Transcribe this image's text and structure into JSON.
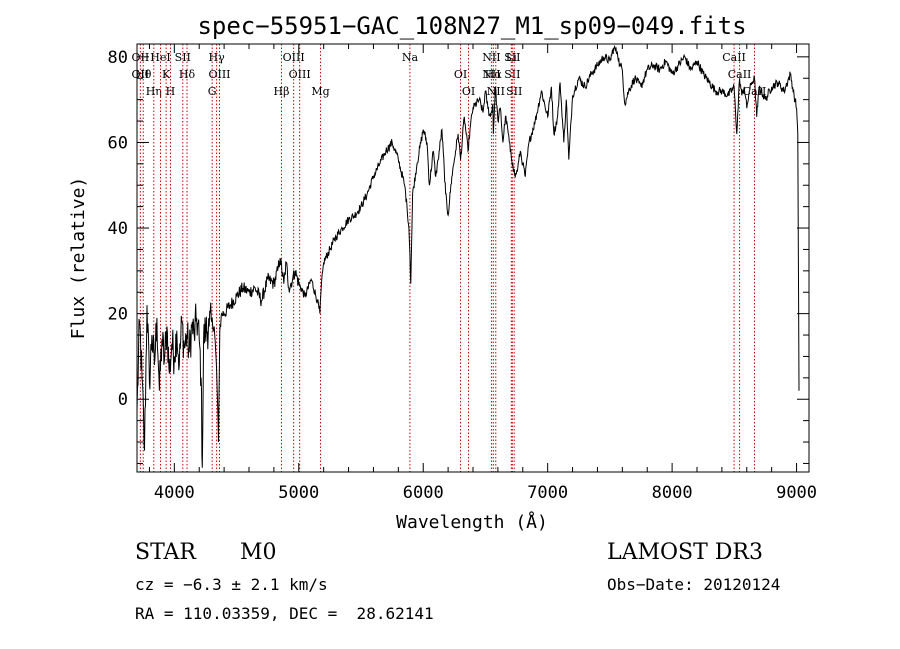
{
  "chart_data": {
    "type": "line",
    "title": "spec−55951−GAC_108N27_M1_sp09−049.fits",
    "xlabel": "Wavelength (Å)",
    "ylabel": "Flux (relative)",
    "xlim": [
      3700,
      9100
    ],
    "ylim": [
      -17,
      83
    ],
    "xticks": [
      4000,
      5000,
      6000,
      7000,
      8000,
      9000
    ],
    "xtick_labels": [
      "4000",
      "5000",
      "6000",
      "7000",
      "8000",
      "9000"
    ],
    "yticks": [
      0,
      20,
      40,
      60,
      80
    ],
    "ytick_labels": [
      "0",
      "20",
      "40",
      "60",
      "80"
    ],
    "series": [
      {
        "name": "flux",
        "x": [
          3700,
          3720,
          3740,
          3760,
          3780,
          3800,
          3820,
          3840,
          3860,
          3880,
          3900,
          3920,
          3940,
          3960,
          3980,
          4000,
          4020,
          4040,
          4060,
          4080,
          4100,
          4120,
          4140,
          4160,
          4180,
          4200,
          4215,
          4225,
          4235,
          4250,
          4280,
          4300,
          4320,
          4340,
          4355,
          4365,
          4380,
          4400,
          4450,
          4500,
          4550,
          4600,
          4650,
          4700,
          4750,
          4800,
          4830,
          4850,
          4880,
          4900,
          4920,
          4950,
          4970,
          5000,
          5050,
          5100,
          5150,
          5170,
          5180,
          5200,
          5250,
          5300,
          5350,
          5400,
          5450,
          5500,
          5550,
          5600,
          5650,
          5700,
          5750,
          5800,
          5850,
          5870,
          5885,
          5893,
          5900,
          5915,
          5950,
          6000,
          6030,
          6050,
          6080,
          6100,
          6120,
          6150,
          6180,
          6200,
          6230,
          6260,
          6280,
          6300,
          6330,
          6360,
          6380,
          6400,
          6450,
          6480,
          6500,
          6520,
          6540,
          6560,
          6563,
          6580,
          6600,
          6620,
          6640,
          6660,
          6680,
          6700,
          6720,
          6740,
          6760,
          6780,
          6800,
          6820,
          6850,
          6900,
          6950,
          7000,
          7030,
          7050,
          7080,
          7100,
          7130,
          7150,
          7170,
          7200,
          7250,
          7300,
          7350,
          7400,
          7450,
          7500,
          7530,
          7560,
          7580,
          7600,
          7620,
          7650,
          7700,
          7750,
          7800,
          7850,
          7900,
          7950,
          8000,
          8050,
          8100,
          8150,
          8200,
          8250,
          8300,
          8350,
          8400,
          8450,
          8498,
          8520,
          8542,
          8560,
          8580,
          8600,
          8620,
          8640,
          8662,
          8680,
          8700,
          8750,
          8800,
          8850,
          8900,
          8950,
          8980,
          9000,
          9010,
          9020
        ],
        "y": [
          -3,
          18,
          5,
          -12,
          22,
          4,
          15,
          8,
          19,
          2,
          14,
          9,
          17,
          6,
          13,
          10,
          16,
          8,
          18,
          12,
          15,
          11,
          17,
          15,
          19,
          14,
          5,
          -16,
          14,
          16,
          17,
          18,
          17,
          7,
          -10,
          16,
          20,
          20,
          22,
          24,
          26,
          25,
          26,
          23,
          28,
          27,
          30,
          33,
          27,
          32,
          26,
          28,
          30,
          27,
          24,
          28,
          23,
          20,
          26,
          32,
          35,
          38,
          40,
          42,
          43,
          45,
          48,
          52,
          55,
          58,
          60,
          56,
          50,
          45,
          40,
          34,
          27,
          48,
          55,
          63,
          60,
          50,
          58,
          52,
          56,
          63,
          48,
          43,
          52,
          58,
          62,
          56,
          66,
          58,
          64,
          68,
          70,
          67,
          72,
          68,
          66,
          69,
          62,
          73,
          65,
          68,
          60,
          66,
          63,
          58,
          55,
          52,
          54,
          58,
          55,
          52,
          60,
          65,
          72,
          66,
          73,
          62,
          66,
          74,
          60,
          70,
          56,
          71,
          75,
          73,
          76,
          78,
          80,
          79,
          82,
          81,
          78,
          77,
          69,
          72,
          75,
          73,
          77,
          78,
          77,
          79,
          76,
          78,
          80,
          77,
          79,
          76,
          74,
          72,
          72,
          71,
          73,
          62,
          75,
          71,
          73,
          68,
          72,
          74,
          75,
          66,
          73,
          70,
          73,
          74,
          72,
          76,
          71,
          68,
          62,
          2
        ]
      }
    ],
    "line_markers": [
      {
        "wl": 3727,
        "labels": [
          "OII",
          "OII"
        ]
      },
      {
        "wl": 3750,
        "labels": [
          "Hθ"
        ]
      },
      {
        "wl": 3835,
        "labels": [
          "Hη"
        ]
      },
      {
        "wl": 3889,
        "labels": [
          "HeI"
        ]
      },
      {
        "wl": 3934,
        "labels": [
          "K"
        ]
      },
      {
        "wl": 3969,
        "labels": [
          "H"
        ]
      },
      {
        "wl": 4068,
        "labels": [
          "SII"
        ]
      },
      {
        "wl": 4102,
        "labels": [
          "Hδ"
        ]
      },
      {
        "wl": 4304,
        "labels": [
          "G"
        ]
      },
      {
        "wl": 4340,
        "labels": [
          "Hγ"
        ]
      },
      {
        "wl": 4363,
        "labels": [
          "OIII"
        ]
      },
      {
        "wl": 4861,
        "labels": [
          "Hβ"
        ]
      },
      {
        "wl": 4959,
        "labels": [
          "OIII"
        ]
      },
      {
        "wl": 5007,
        "labels": [
          "OIII"
        ]
      },
      {
        "wl": 5175,
        "labels": [
          "Mg"
        ]
      },
      {
        "wl": 5893,
        "labels": [
          "Na"
        ]
      },
      {
        "wl": 6300,
        "labels": [
          "OI"
        ]
      },
      {
        "wl": 6364,
        "labels": [
          "OI"
        ]
      },
      {
        "wl": 6548,
        "labels": [
          "NII",
          "NII"
        ]
      },
      {
        "wl": 6563,
        "labels": [
          "Hα"
        ]
      },
      {
        "wl": 6583,
        "labels": [
          "NII"
        ]
      },
      {
        "wl": 6708,
        "labels": [
          "Li"
        ]
      },
      {
        "wl": 6716,
        "labels": [
          "SII",
          "SII"
        ]
      },
      {
        "wl": 6731,
        "labels": [
          "SII"
        ]
      },
      {
        "wl": 8498,
        "labels": [
          "CaII"
        ]
      },
      {
        "wl": 8542,
        "labels": [
          "CaII"
        ]
      },
      {
        "wl": 8662,
        "labels": [
          "CaII"
        ]
      }
    ]
  },
  "info": {
    "object_class": "STAR",
    "subclass": "M0",
    "survey": "LAMOST DR3",
    "cz": "cz = −6.3 ± 2.1 km/s",
    "obs_date": "Obs−Date: 20120124",
    "coords": "RA = 110.03359, DEC =  28.62141"
  },
  "colors": {
    "line_marker": "#cc0000",
    "spectrum": "#000000"
  }
}
